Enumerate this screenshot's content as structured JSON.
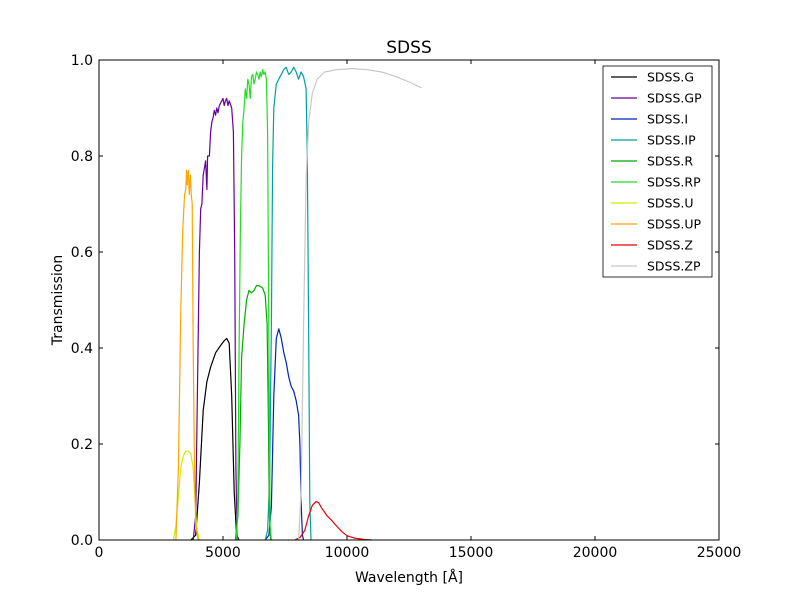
{
  "chart_data": {
    "type": "line",
    "title": "SDSS",
    "xlabel": "Wavelength [Å]",
    "ylabel": "Transmission",
    "xlim": [
      0,
      25000
    ],
    "ylim": [
      0.0,
      1.0
    ],
    "grid": false,
    "legend_position": "top-right",
    "xticks": [
      0,
      5000,
      10000,
      15000,
      20000,
      25000
    ],
    "xtick_labels": [
      "0",
      "5000",
      "10000",
      "15000",
      "20000",
      "25000"
    ],
    "yticks": [
      0.0,
      0.2,
      0.4,
      0.6,
      0.8,
      1.0
    ],
    "ytick_labels": [
      "0.0",
      "0.2",
      "0.4",
      "0.6",
      "0.8",
      "1.0"
    ],
    "series": [
      {
        "name": "SDSS.G",
        "color": "#000000",
        "points": [
          [
            3700,
            0
          ],
          [
            3900,
            0.01
          ],
          [
            4050,
            0.12
          ],
          [
            4200,
            0.27
          ],
          [
            4350,
            0.33
          ],
          [
            4500,
            0.36
          ],
          [
            4700,
            0.39
          ],
          [
            4900,
            0.405
          ],
          [
            5050,
            0.415
          ],
          [
            5150,
            0.42
          ],
          [
            5250,
            0.41
          ],
          [
            5350,
            0.3
          ],
          [
            5450,
            0.1
          ],
          [
            5550,
            0.01
          ],
          [
            5650,
            0
          ]
        ]
      },
      {
        "name": "SDSS.GP",
        "color": "#660099",
        "points": [
          [
            3800,
            0
          ],
          [
            3900,
            0.05
          ],
          [
            3980,
            0.35
          ],
          [
            4050,
            0.6
          ],
          [
            4100,
            0.69
          ],
          [
            4150,
            0.7
          ],
          [
            4200,
            0.76
          ],
          [
            4300,
            0.79
          ],
          [
            4350,
            0.73
          ],
          [
            4380,
            0.8
          ],
          [
            4450,
            0.8
          ],
          [
            4500,
            0.85
          ],
          [
            4550,
            0.87
          ],
          [
            4600,
            0.88
          ],
          [
            4650,
            0.895
          ],
          [
            4700,
            0.885
          ],
          [
            4750,
            0.9
          ],
          [
            4800,
            0.89
          ],
          [
            4850,
            0.905
          ],
          [
            4900,
            0.91
          ],
          [
            4950,
            0.915
          ],
          [
            5000,
            0.92
          ],
          [
            5050,
            0.905
          ],
          [
            5100,
            0.915
          ],
          [
            5150,
            0.92
          ],
          [
            5200,
            0.905
          ],
          [
            5250,
            0.915
          ],
          [
            5350,
            0.9
          ],
          [
            5420,
            0.85
          ],
          [
            5470,
            0.6
          ],
          [
            5520,
            0.15
          ],
          [
            5570,
            0.01
          ],
          [
            5620,
            0
          ]
        ]
      },
      {
        "name": "SDSS.I",
        "color": "#0022bb",
        "points": [
          [
            6700,
            0
          ],
          [
            6850,
            0.01
          ],
          [
            6950,
            0.07
          ],
          [
            7050,
            0.3
          ],
          [
            7150,
            0.42
          ],
          [
            7250,
            0.44
          ],
          [
            7350,
            0.42
          ],
          [
            7450,
            0.39
          ],
          [
            7550,
            0.37
          ],
          [
            7650,
            0.34
          ],
          [
            7750,
            0.32
          ],
          [
            7850,
            0.31
          ],
          [
            7950,
            0.29
          ],
          [
            8050,
            0.26
          ],
          [
            8100,
            0.2
          ],
          [
            8150,
            0.08
          ],
          [
            8200,
            0.01
          ],
          [
            8250,
            0
          ]
        ]
      },
      {
        "name": "SDSS.IP",
        "color": "#00a0a0",
        "points": [
          [
            6700,
            0
          ],
          [
            6800,
            0.02
          ],
          [
            6880,
            0.12
          ],
          [
            6950,
            0.45
          ],
          [
            7000,
            0.78
          ],
          [
            7050,
            0.9
          ],
          [
            7150,
            0.95
          ],
          [
            7300,
            0.965
          ],
          [
            7450,
            0.98
          ],
          [
            7550,
            0.985
          ],
          [
            7650,
            0.97
          ],
          [
            7750,
            0.975
          ],
          [
            7850,
            0.985
          ],
          [
            7950,
            0.975
          ],
          [
            8050,
            0.96
          ],
          [
            8150,
            0.975
          ],
          [
            8250,
            0.965
          ],
          [
            8350,
            0.94
          ],
          [
            8400,
            0.8
          ],
          [
            8450,
            0.45
          ],
          [
            8500,
            0.08
          ],
          [
            8550,
            0
          ]
        ]
      },
      {
        "name": "SDSS.R",
        "color": "#00aa00",
        "points": [
          [
            5500,
            0
          ],
          [
            5600,
            0.05
          ],
          [
            5680,
            0.2
          ],
          [
            5750,
            0.38
          ],
          [
            5850,
            0.45
          ],
          [
            5950,
            0.5
          ],
          [
            6050,
            0.52
          ],
          [
            6150,
            0.515
          ],
          [
            6250,
            0.52
          ],
          [
            6350,
            0.53
          ],
          [
            6450,
            0.53
          ],
          [
            6600,
            0.525
          ],
          [
            6700,
            0.51
          ],
          [
            6780,
            0.45
          ],
          [
            6830,
            0.25
          ],
          [
            6870,
            0.05
          ],
          [
            6920,
            0
          ]
        ]
      },
      {
        "name": "SDSS.RP",
        "color": "#22dd22",
        "points": [
          [
            5550,
            0
          ],
          [
            5600,
            0.1
          ],
          [
            5650,
            0.4
          ],
          [
            5700,
            0.65
          ],
          [
            5750,
            0.8
          ],
          [
            5800,
            0.87
          ],
          [
            5850,
            0.9
          ],
          [
            5900,
            0.94
          ],
          [
            5950,
            0.92
          ],
          [
            6000,
            0.96
          ],
          [
            6050,
            0.95
          ],
          [
            6100,
            0.92
          ],
          [
            6150,
            0.965
          ],
          [
            6200,
            0.97
          ],
          [
            6250,
            0.95
          ],
          [
            6300,
            0.96
          ],
          [
            6350,
            0.975
          ],
          [
            6400,
            0.97
          ],
          [
            6450,
            0.96
          ],
          [
            6500,
            0.975
          ],
          [
            6550,
            0.965
          ],
          [
            6600,
            0.98
          ],
          [
            6650,
            0.97
          ],
          [
            6700,
            0.975
          ],
          [
            6750,
            0.96
          ],
          [
            6800,
            0.85
          ],
          [
            6850,
            0.4
          ],
          [
            6900,
            0.03
          ],
          [
            6950,
            0
          ]
        ]
      },
      {
        "name": "SDSS.U",
        "color": "#ccee00",
        "points": [
          [
            3000,
            0
          ],
          [
            3100,
            0.03
          ],
          [
            3200,
            0.09
          ],
          [
            3300,
            0.15
          ],
          [
            3400,
            0.175
          ],
          [
            3500,
            0.185
          ],
          [
            3600,
            0.185
          ],
          [
            3700,
            0.18
          ],
          [
            3800,
            0.15
          ],
          [
            3870,
            0.08
          ],
          [
            3950,
            0.02
          ],
          [
            4050,
            0
          ]
        ]
      },
      {
        "name": "SDSS.UP",
        "color": "#ffa500",
        "points": [
          [
            3100,
            0
          ],
          [
            3200,
            0.15
          ],
          [
            3300,
            0.48
          ],
          [
            3380,
            0.65
          ],
          [
            3450,
            0.72
          ],
          [
            3500,
            0.73
          ],
          [
            3530,
            0.77
          ],
          [
            3560,
            0.74
          ],
          [
            3600,
            0.77
          ],
          [
            3640,
            0.72
          ],
          [
            3680,
            0.76
          ],
          [
            3720,
            0.72
          ],
          [
            3760,
            0.7
          ],
          [
            3800,
            0.4
          ],
          [
            3850,
            0.15
          ],
          [
            3900,
            0.03
          ],
          [
            4000,
            0
          ]
        ]
      },
      {
        "name": "SDSS.Z",
        "color": "#ee0000",
        "points": [
          [
            7900,
            0
          ],
          [
            8100,
            0.005
          ],
          [
            8300,
            0.02
          ],
          [
            8450,
            0.05
          ],
          [
            8600,
            0.072
          ],
          [
            8750,
            0.08
          ],
          [
            8850,
            0.078
          ],
          [
            9000,
            0.065
          ],
          [
            9200,
            0.05
          ],
          [
            9400,
            0.04
          ],
          [
            9600,
            0.028
          ],
          [
            9800,
            0.017
          ],
          [
            10000,
            0.009
          ],
          [
            10300,
            0.004
          ],
          [
            10700,
            0.001
          ],
          [
            11000,
            0
          ]
        ]
      },
      {
        "name": "SDSS.ZP",
        "color": "#c8c8c8",
        "points": [
          [
            8050,
            0
          ],
          [
            8150,
            0.1
          ],
          [
            8250,
            0.45
          ],
          [
            8350,
            0.75
          ],
          [
            8450,
            0.87
          ],
          [
            8600,
            0.93
          ],
          [
            8800,
            0.96
          ],
          [
            9100,
            0.975
          ],
          [
            9600,
            0.98
          ],
          [
            10200,
            0.982
          ],
          [
            10800,
            0.98
          ],
          [
            11400,
            0.975
          ],
          [
            12000,
            0.965
          ],
          [
            12600,
            0.952
          ],
          [
            13000,
            0.942
          ]
        ]
      }
    ]
  }
}
